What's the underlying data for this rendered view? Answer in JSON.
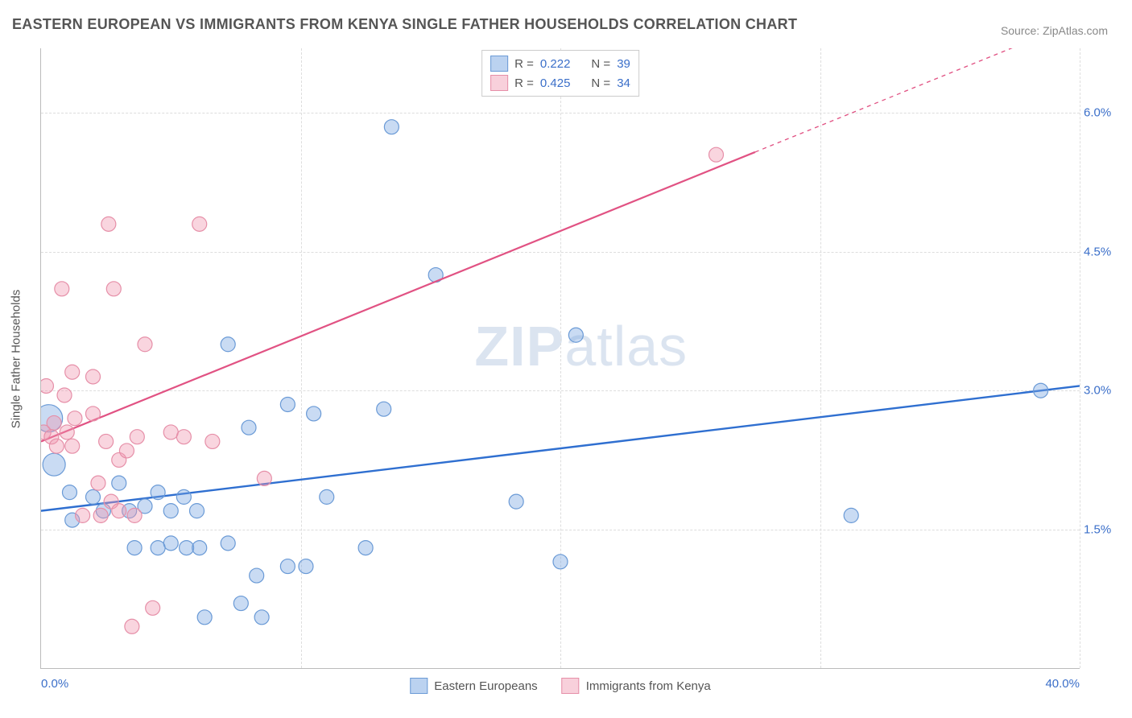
{
  "title": "EASTERN EUROPEAN VS IMMIGRANTS FROM KENYA SINGLE FATHER HOUSEHOLDS CORRELATION CHART",
  "source_label": "Source:",
  "source_value": "ZipAtlas.com",
  "watermark": {
    "part1": "ZIP",
    "part2": "atlas"
  },
  "chart": {
    "type": "scatter",
    "background_color": "#ffffff",
    "grid_color": "#dddddd",
    "axis_color": "#bbbbbb",
    "ylabel": "Single Father Households",
    "label_fontsize": 15,
    "xlim": [
      0,
      40
    ],
    "ylim": [
      0,
      6.7
    ],
    "x_ticks": [
      {
        "pos": 0.0,
        "label": "0.0%"
      },
      {
        "pos": 40.0,
        "label": "40.0%"
      }
    ],
    "x_gridlines": [
      10,
      20,
      30,
      40
    ],
    "y_ticks": [
      {
        "pos": 1.5,
        "label": "1.5%"
      },
      {
        "pos": 3.0,
        "label": "3.0%"
      },
      {
        "pos": 4.5,
        "label": "4.5%"
      },
      {
        "pos": 6.0,
        "label": "6.0%"
      }
    ],
    "point_radius": 9,
    "point_stroke_width": 1.2,
    "series": [
      {
        "name": "Eastern Europeans",
        "fill_color": "rgba(120,165,225,0.40)",
        "stroke_color": "#6a9ad6",
        "line_color": "#2f6fd0",
        "line_width": 2.4,
        "R": "0.222",
        "N": "39",
        "trend": {
          "x1": 0,
          "y1": 1.7,
          "x2": 40,
          "y2": 3.05
        },
        "points": [
          {
            "x": 0.3,
            "y": 2.7,
            "r": 17
          },
          {
            "x": 0.5,
            "y": 2.2,
            "r": 14
          },
          {
            "x": 1.1,
            "y": 1.9
          },
          {
            "x": 1.2,
            "y": 1.6
          },
          {
            "x": 2.0,
            "y": 1.85
          },
          {
            "x": 2.4,
            "y": 1.7
          },
          {
            "x": 3.0,
            "y": 2.0
          },
          {
            "x": 3.4,
            "y": 1.7
          },
          {
            "x": 3.6,
            "y": 1.3
          },
          {
            "x": 4.0,
            "y": 1.75
          },
          {
            "x": 4.5,
            "y": 1.3
          },
          {
            "x": 4.5,
            "y": 1.9
          },
          {
            "x": 5.0,
            "y": 1.7
          },
          {
            "x": 5.0,
            "y": 1.35
          },
          {
            "x": 5.6,
            "y": 1.3
          },
          {
            "x": 5.5,
            "y": 1.85
          },
          {
            "x": 6.0,
            "y": 1.7
          },
          {
            "x": 6.1,
            "y": 1.3
          },
          {
            "x": 6.3,
            "y": 0.55
          },
          {
            "x": 7.2,
            "y": 3.5
          },
          {
            "x": 7.2,
            "y": 1.35
          },
          {
            "x": 7.7,
            "y": 0.7
          },
          {
            "x": 8.0,
            "y": 2.6
          },
          {
            "x": 8.3,
            "y": 1.0
          },
          {
            "x": 8.5,
            "y": 0.55
          },
          {
            "x": 9.5,
            "y": 1.1
          },
          {
            "x": 9.5,
            "y": 2.85
          },
          {
            "x": 10.2,
            "y": 1.1
          },
          {
            "x": 10.5,
            "y": 2.75
          },
          {
            "x": 11.0,
            "y": 1.85
          },
          {
            "x": 12.5,
            "y": 1.3
          },
          {
            "x": 13.2,
            "y": 2.8
          },
          {
            "x": 13.5,
            "y": 5.85
          },
          {
            "x": 15.2,
            "y": 4.25
          },
          {
            "x": 18.3,
            "y": 1.8
          },
          {
            "x": 20.0,
            "y": 1.15
          },
          {
            "x": 20.6,
            "y": 3.6
          },
          {
            "x": 31.2,
            "y": 1.65
          },
          {
            "x": 38.5,
            "y": 3.0
          }
        ]
      },
      {
        "name": "Immigrants from Kenya",
        "fill_color": "rgba(240,150,175,0.40)",
        "stroke_color": "#e68fa8",
        "line_color": "#e15283",
        "line_width": 2.2,
        "R": "0.425",
        "N": "34",
        "trend": {
          "x1": 0,
          "y1": 2.45,
          "x2": 40,
          "y2": 7.0
        },
        "trend_solid_until_x": 27.5,
        "points": [
          {
            "x": 0.1,
            "y": 2.55
          },
          {
            "x": 0.2,
            "y": 3.05
          },
          {
            "x": 0.4,
            "y": 2.5
          },
          {
            "x": 0.5,
            "y": 2.65
          },
          {
            "x": 0.6,
            "y": 2.4
          },
          {
            "x": 0.8,
            "y": 4.1
          },
          {
            "x": 0.9,
            "y": 2.95
          },
          {
            "x": 1.0,
            "y": 2.55
          },
          {
            "x": 1.2,
            "y": 3.2
          },
          {
            "x": 1.2,
            "y": 2.4
          },
          {
            "x": 1.3,
            "y": 2.7
          },
          {
            "x": 1.6,
            "y": 1.65
          },
          {
            "x": 2.0,
            "y": 3.15
          },
          {
            "x": 2.0,
            "y": 2.75
          },
          {
            "x": 2.2,
            "y": 2.0
          },
          {
            "x": 2.3,
            "y": 1.65
          },
          {
            "x": 2.5,
            "y": 2.45
          },
          {
            "x": 2.6,
            "y": 4.8
          },
          {
            "x": 2.7,
            "y": 1.8
          },
          {
            "x": 2.8,
            "y": 4.1
          },
          {
            "x": 3.0,
            "y": 1.7
          },
          {
            "x": 3.0,
            "y": 2.25
          },
          {
            "x": 3.3,
            "y": 2.35
          },
          {
            "x": 3.5,
            "y": 0.45
          },
          {
            "x": 3.6,
            "y": 1.65
          },
          {
            "x": 3.7,
            "y": 2.5
          },
          {
            "x": 4.0,
            "y": 3.5
          },
          {
            "x": 4.3,
            "y": 0.65
          },
          {
            "x": 5.0,
            "y": 2.55
          },
          {
            "x": 5.5,
            "y": 2.5
          },
          {
            "x": 6.1,
            "y": 4.8
          },
          {
            "x": 6.6,
            "y": 2.45
          },
          {
            "x": 8.6,
            "y": 2.05
          },
          {
            "x": 26.0,
            "y": 5.55
          }
        ]
      }
    ]
  },
  "legend_top": {
    "R_label": "R =",
    "N_label": "N ="
  },
  "legend_bottom": [
    {
      "swatch": "blue",
      "label": "Eastern Europeans"
    },
    {
      "swatch": "pink",
      "label": "Immigrants from Kenya"
    }
  ]
}
